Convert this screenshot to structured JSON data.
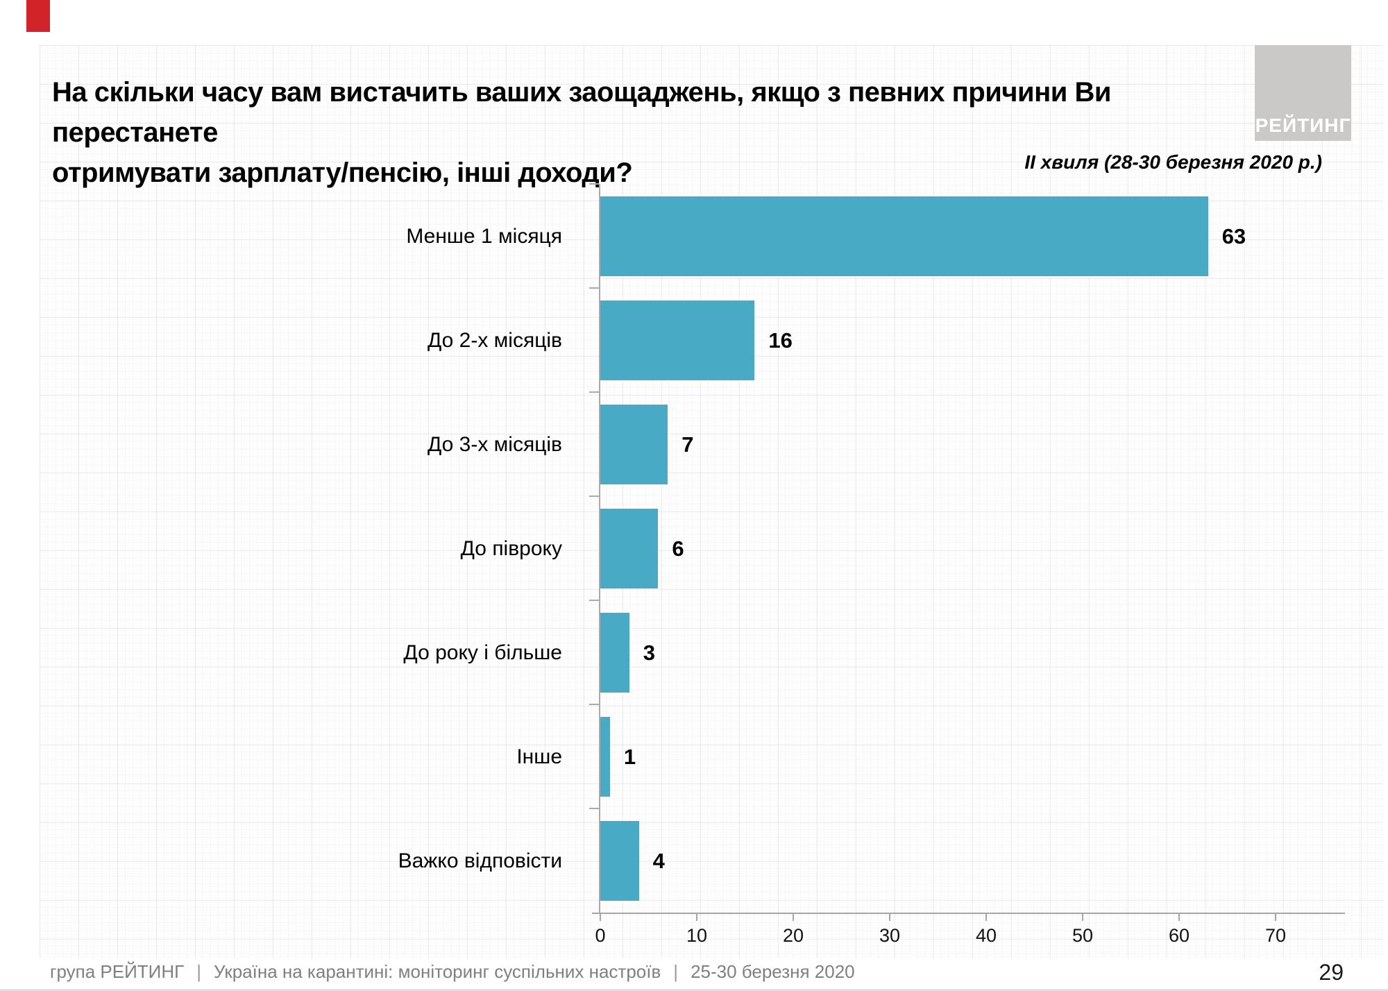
{
  "slide": {
    "title_line1": "На скільки часу вам вистачить ваших заощаджень, якщо з певних причини Ви перестанете",
    "title_line2": "отримувати зарплату/пенсію, інші доходи?",
    "subtitle": "ІІ хвиля (28-30 березня 2020 р.)",
    "logo_text": "РЕЙТИНГ",
    "page_number": "29",
    "footer": {
      "org": "група РЕЙТИНГ",
      "separator": "|",
      "project": "Україна на карантині: моніторинг суспільних настроїв",
      "dates": "25-30 березня 2020"
    }
  },
  "chart_data": {
    "type": "bar",
    "orientation": "horizontal",
    "title": "На скільки часу вам вистачить ваших заощаджень, якщо з певних причини Ви перестанете отримувати зарплату/пенсію, інші доходи?",
    "subtitle": "ІІ хвиля (28-30 березня 2020 р.)",
    "categories": [
      "Менше 1 місяця",
      "До 2-х місяців",
      "До 3-х місяців",
      "До півроку",
      "До року і більше",
      "Інше",
      "Важко відповісти"
    ],
    "values": [
      63,
      16,
      7,
      6,
      3,
      1,
      4
    ],
    "xlabel": "",
    "ylabel": "",
    "xlim": [
      0,
      75
    ],
    "x_ticks": [
      0,
      10,
      20,
      30,
      40,
      50,
      60,
      70
    ],
    "grid": false,
    "legend_position": "none",
    "value_labels": "outside-end"
  },
  "colors": {
    "bar_teal": "#48AAC4",
    "accent_red": "#D2232A",
    "logo_gray": "#CBC9C7",
    "axis_gray": "#ABABAB",
    "footer_gray": "#7F7F7F"
  }
}
